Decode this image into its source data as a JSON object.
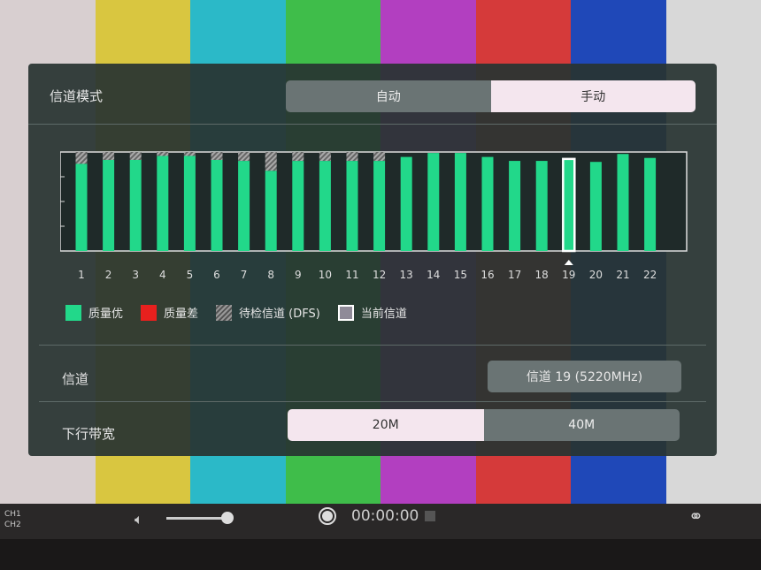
{
  "background": {
    "colors": [
      "#d8cfd0",
      "#d9c640",
      "#2bb9c8",
      "#3fbd4a",
      "#b23fc0",
      "#d53a3a",
      "#1f48b8",
      "#d8d8d8"
    ]
  },
  "mode": {
    "label": "信道模式",
    "options": [
      "自动",
      "手动"
    ],
    "selected": "手动"
  },
  "chart_data": {
    "type": "bar",
    "categories": [
      "1",
      "2",
      "3",
      "4",
      "5",
      "6",
      "7",
      "8",
      "9",
      "10",
      "11",
      "12",
      "13",
      "14",
      "15",
      "16",
      "17",
      "18",
      "19",
      "20",
      "21",
      "22"
    ],
    "series": [
      {
        "name": "质量优",
        "color": "#22d88a",
        "values": [
          88,
          92,
          92,
          96,
          96,
          92,
          91,
          81,
          91,
          91,
          91,
          91,
          95,
          99,
          99,
          95,
          91,
          91,
          93,
          90,
          98,
          94
        ]
      },
      {
        "name": "待检信道 (DFS)",
        "color": "#8a8f90",
        "values": [
          12,
          8,
          8,
          4,
          4,
          8,
          9,
          19,
          9,
          9,
          9,
          9,
          0,
          0,
          0,
          0,
          0,
          0,
          0,
          0,
          0,
          0
        ]
      }
    ],
    "current_channel": "19",
    "ylim": [
      0,
      100
    ]
  },
  "legend": [
    {
      "label": "质量优",
      "color": "#22d88a"
    },
    {
      "label": "质量差",
      "color": "#e8201e"
    },
    {
      "label": "待检信道 (DFS)",
      "color": "hatched"
    },
    {
      "label": "当前信道",
      "color": "#8f8a98"
    }
  ],
  "channel": {
    "label": "信道",
    "value": "信道 19 (5220MHz)"
  },
  "bandwidth": {
    "label": "下行带宽",
    "options": [
      "20M",
      "40M"
    ],
    "selected": "20M"
  },
  "toolbar": {
    "ch1": "CH1",
    "ch2": "CH2",
    "timer": "00:00:00",
    "volume": 0.9
  }
}
